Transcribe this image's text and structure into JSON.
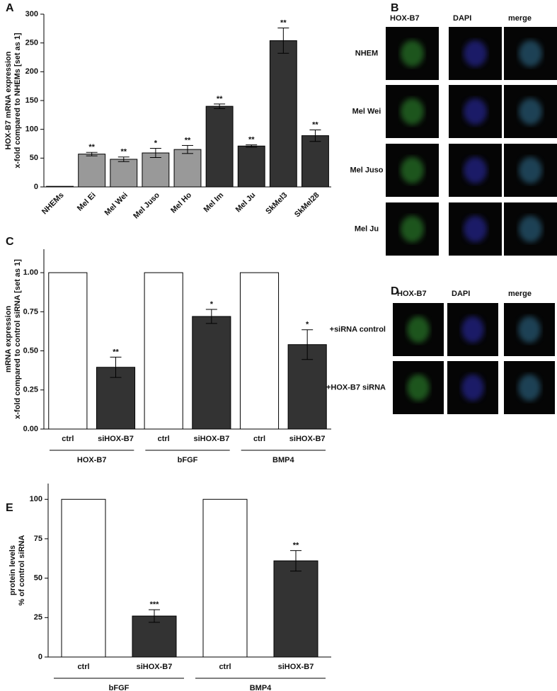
{
  "chart_data": [
    {
      "type": "bar",
      "panel_label": "A",
      "ylabel": [
        "HOX-B7 mRNA expression",
        "x-fold compared to NHEMs [set as 1]"
      ],
      "categories": [
        "NHEMs",
        "Mel Ei",
        "Mel Wei",
        "Mel Juso",
        "Mel Ho",
        "Mel Im",
        "Mel Ju",
        "SkMel3",
        "SkMel28"
      ],
      "values": [
        1,
        57,
        48,
        59,
        65,
        140,
        71,
        254,
        89
      ],
      "errors": [
        0,
        3,
        4,
        8,
        7,
        4,
        2,
        22,
        10
      ],
      "annotations": [
        null,
        "**",
        "**",
        "*",
        "**",
        "**",
        "**",
        "**",
        "**"
      ],
      "colors": [
        "#999999",
        "#999999",
        "#999999",
        "#999999",
        "#999999",
        "#333333",
        "#333333",
        "#333333",
        "#333333"
      ],
      "ylim": [
        0,
        300
      ],
      "yticks": [
        0,
        50,
        100,
        150,
        200,
        250,
        300
      ]
    },
    {
      "type": "bar",
      "panel_label": "C",
      "ylabel": [
        "mRNA expression",
        "x-fold compared to control siRNA [set as 1]"
      ],
      "categories": [
        "ctrl",
        "siHOX-B7",
        "ctrl",
        "siHOX-B7",
        "ctrl",
        "siHOX-B7"
      ],
      "groups": [
        "HOX-B7",
        "bFGF",
        "BMP4"
      ],
      "values": [
        1,
        0.395,
        1,
        0.72,
        1,
        0.54
      ],
      "errors": [
        0,
        0.065,
        0,
        0.045,
        0,
        0.095
      ],
      "annotations": [
        null,
        "**",
        null,
        "*",
        null,
        "*"
      ],
      "colors": [
        "#ffffff",
        "#333333",
        "#ffffff",
        "#333333",
        "#ffffff",
        "#333333"
      ],
      "ylim": [
        0,
        1.15
      ],
      "yticks": [
        {
          "value": 0,
          "label": "0.00"
        },
        {
          "value": 0.25,
          "label": "0.25"
        },
        {
          "value": 0.5,
          "label": "0.50"
        },
        {
          "value": 0.75,
          "label": "0.75"
        },
        {
          "value": 1,
          "label": "1.00"
        }
      ]
    },
    {
      "type": "bar",
      "panel_label": "E",
      "ylabel": [
        "protein levels",
        "% of control siRNA"
      ],
      "categories": [
        "ctrl",
        "siHOX-B7",
        "ctrl",
        "siHOX-B7"
      ],
      "groups": [
        "bFGF",
        "BMP4"
      ],
      "values": [
        100,
        26,
        100,
        61
      ],
      "errors": [
        0,
        4,
        0,
        6.5
      ],
      "annotations": [
        null,
        "***",
        null,
        "**"
      ],
      "colors": [
        "#ffffff",
        "#333333",
        "#ffffff",
        "#333333"
      ],
      "ylim": [
        0,
        110
      ],
      "yticks": [
        0,
        25,
        50,
        75,
        100
      ]
    }
  ],
  "panel_b": {
    "label": "B",
    "columns": [
      "HOX-B7",
      "DAPI",
      "merge"
    ],
    "rows": [
      "NHEM",
      "Mel Wei",
      "Mel Juso",
      "Mel Ju"
    ]
  },
  "panel_d": {
    "label": "D",
    "columns": [
      "HOX-B7",
      "DAPI",
      "merge"
    ],
    "rows": [
      "+siRNA control",
      "+HOX-B7 siRNA"
    ]
  }
}
